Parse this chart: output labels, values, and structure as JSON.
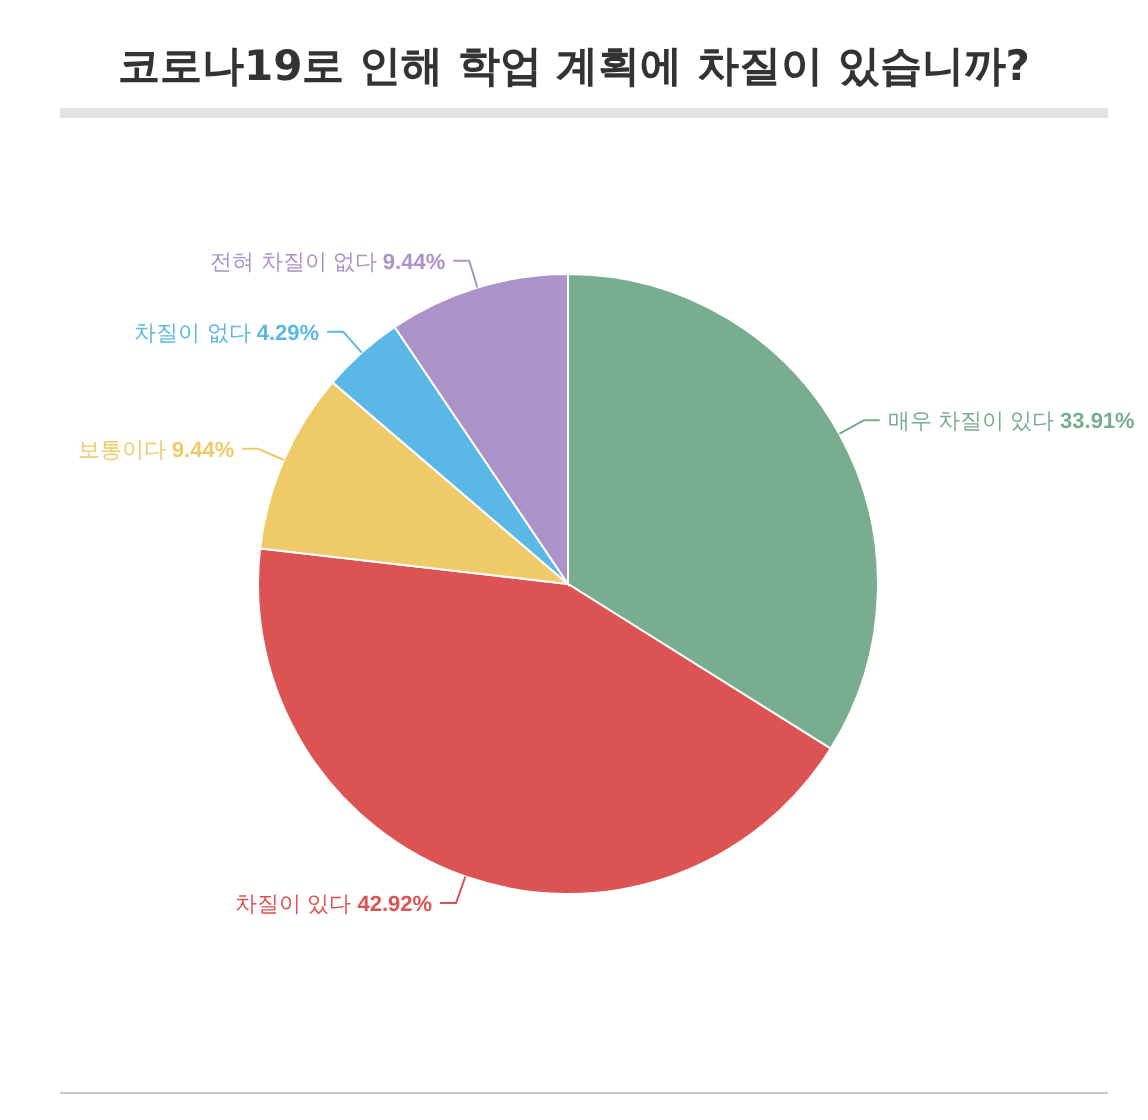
{
  "chart_data": {
    "type": "pie",
    "title": "코로나19로 인해 학업 계획에 차질이 있습니까?",
    "categories": [
      "매우 차질이 있다",
      "차질이 있다",
      "보통이다",
      "차질이 없다",
      "전혀 차질이 없다"
    ],
    "values": [
      33.91,
      42.92,
      9.44,
      4.29,
      9.44
    ],
    "value_labels": [
      "33.91%",
      "42.92%",
      "9.44%",
      "4.29%",
      "9.44%"
    ],
    "colors": [
      "#79ad8f",
      "#dc5353",
      "#efca69",
      "#5bb8e6",
      "#ab92c8"
    ]
  }
}
